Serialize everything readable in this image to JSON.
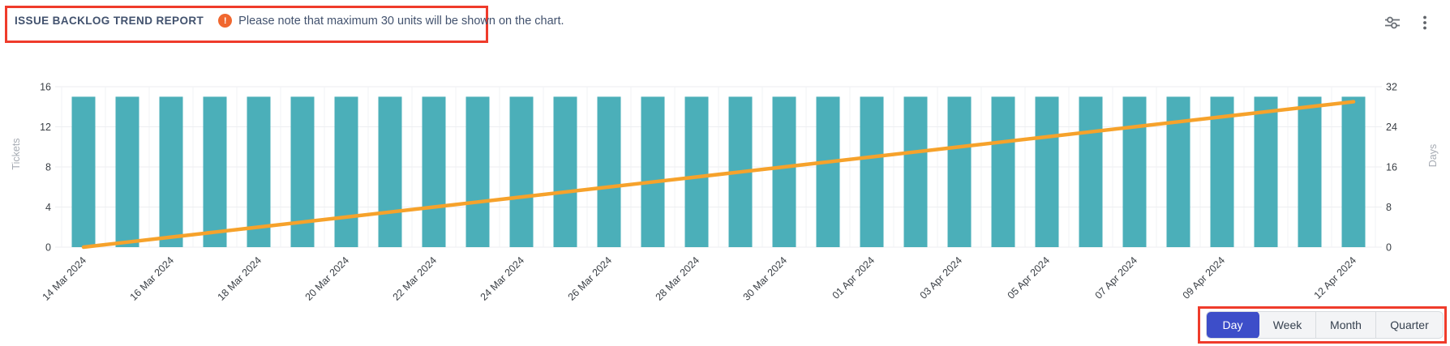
{
  "header": {
    "title": "ISSUE BACKLOG TREND REPORT",
    "note_icon": "alert-circle-icon",
    "note_icon_glyph": "!",
    "note": "Please note that maximum 30 units will be shown on the chart."
  },
  "toolbar": {
    "filter_icon": "sliders-icon",
    "menu_icon": "kebab-menu-icon"
  },
  "colors": {
    "bar": "#4BAFB9",
    "line": "#F6A22B",
    "annotation_red": "#EF3B2B",
    "selected_button_bg": "#3D4EC9",
    "selected_button_text": "#FFFFFF",
    "button_bg": "#F3F4F6",
    "button_text": "#36414F",
    "grid": "#EDEEF1",
    "grid_vertical": "#F2F3F5",
    "tick_text": "#3A3F45",
    "axis_name_text": "#A6ABB3",
    "title_text": "#42526E",
    "note_dot_bg": "#F0672F",
    "icon_gray": "#6B7077"
  },
  "chart_data": {
    "type": "bar",
    "title": "Issue backlog trend",
    "categories": [
      "14 Mar 2024",
      "15 Mar 2024",
      "16 Mar 2024",
      "17 Mar 2024",
      "18 Mar 2024",
      "19 Mar 2024",
      "20 Mar 2024",
      "21 Mar 2024",
      "22 Mar 2024",
      "23 Mar 2024",
      "24 Mar 2024",
      "25 Mar 2024",
      "26 Mar 2024",
      "27 Mar 2024",
      "28 Mar 2024",
      "29 Mar 2024",
      "30 Mar 2024",
      "31 Mar 2024",
      "01 Apr 2024",
      "02 Apr 2024",
      "03 Apr 2024",
      "04 Apr 2024",
      "05 Apr 2024",
      "06 Apr 2024",
      "07 Apr 2024",
      "08 Apr 2024",
      "09 Apr 2024",
      "10 Apr 2024",
      "11 Apr 2024",
      "12 Apr 2024"
    ],
    "series": [
      {
        "name": "Tickets",
        "type": "bar",
        "axis": "left",
        "values": [
          15,
          15,
          15,
          15,
          15,
          15,
          15,
          15,
          15,
          15,
          15,
          15,
          15,
          15,
          15,
          15,
          15,
          15,
          15,
          15,
          15,
          15,
          15,
          15,
          15,
          15,
          15,
          15,
          15,
          15
        ]
      },
      {
        "name": "Days",
        "type": "line",
        "axis": "right",
        "values": [
          0,
          1,
          2,
          3,
          4,
          5,
          6,
          7,
          8,
          9,
          10,
          11,
          12,
          13,
          14,
          15,
          16,
          17,
          18,
          19,
          20,
          21,
          22,
          23,
          24,
          25,
          26,
          27,
          28,
          29
        ]
      }
    ],
    "left_axis": {
      "name": "Tickets",
      "ticks": [
        0,
        4,
        8,
        12,
        16
      ],
      "max": 16
    },
    "right_axis": {
      "name": "Days",
      "ticks": [
        0,
        8,
        16,
        24,
        32
      ],
      "max": 32
    },
    "x_tick_labels": [
      "14 Mar 2024",
      "16 Mar 2024",
      "18 Mar 2024",
      "20 Mar 2024",
      "22 Mar 2024",
      "24 Mar 2024",
      "26 Mar 2024",
      "28 Mar 2024",
      "30 Mar 2024",
      "01 Apr 2024",
      "03 Apr 2024",
      "05 Apr 2024",
      "07 Apr 2024",
      "09 Apr 2024",
      "12 Apr 2024"
    ],
    "x_tick_rotation": -45,
    "grid": true,
    "legend": "none"
  },
  "period_toggle": {
    "options": [
      "Day",
      "Week",
      "Month",
      "Quarter"
    ],
    "selected": "Day"
  }
}
